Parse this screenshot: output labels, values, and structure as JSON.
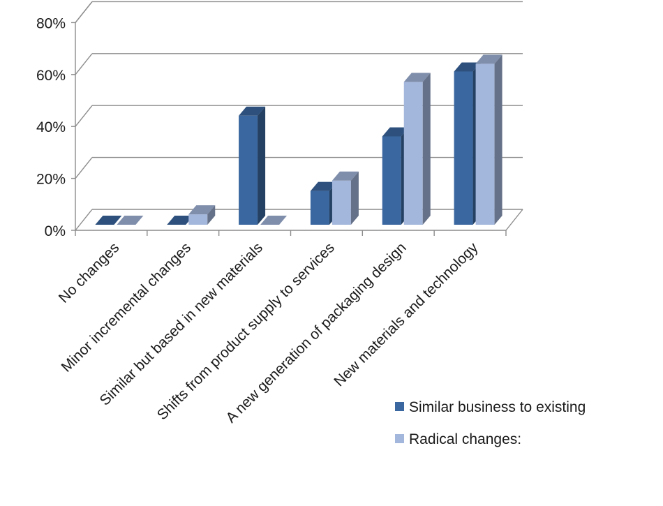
{
  "chart_data": {
    "type": "bar",
    "categories": [
      "No changes",
      "Minor incremental  changes",
      "Similar but based in new materials",
      "Shifts from product supply to services",
      "A new generation of packaging design",
      "New materials  and technology"
    ],
    "series": [
      {
        "name": "Similar business to existing",
        "values": [
          0,
          0,
          42,
          13,
          34,
          59
        ],
        "color": "#3a67a0"
      },
      {
        "name": "Radical changes:",
        "values": [
          0,
          4,
          0,
          17,
          55,
          62
        ],
        "color": "#a3b6db"
      }
    ],
    "y_ticks": [
      "0%",
      "20%",
      "40%",
      "60%",
      "80%"
    ],
    "ylim": [
      0,
      80
    ],
    "grid": true,
    "legend_position": "bottom-right",
    "three_d": true
  }
}
